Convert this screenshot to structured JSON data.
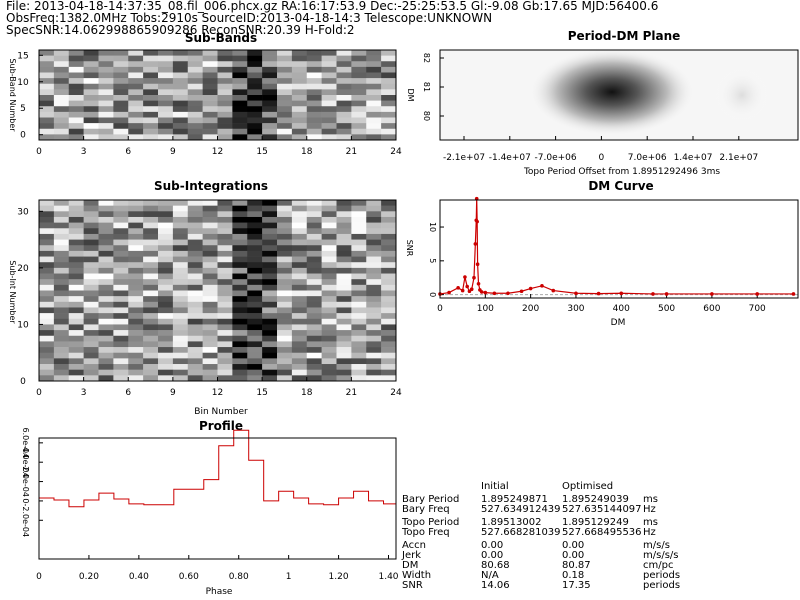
{
  "header": {
    "line1": "File: 2013-04-18-14:37:35_08.fil_006.phcx.gz   RA:16:17:53.9   Dec:-25:25:53.5   Gl:-9.08   Gb:17.65   MJD:56400.6",
    "line2": "ObsFreq:1382.0MHz   Tobs:2910s   SourceID:2013-04-18-14:3   Telescope:UNKNOWN",
    "line3": "SpecSNR:14.062998865909286   ReconSNR:20.39   H-Fold:2"
  },
  "subbands": {
    "title": "Sub-Bands",
    "ylabel": "Sub-Band Number",
    "xticks": [
      "0",
      "3",
      "6",
      "9",
      "12",
      "15",
      "18",
      "21",
      "24"
    ],
    "yticks": [
      "0",
      "5",
      "10",
      "15"
    ]
  },
  "subints": {
    "title": "Sub-Integrations",
    "xlabel": "Bin Number",
    "ylabel": "Sub-Int Number",
    "xticks": [
      "0",
      "3",
      "6",
      "9",
      "12",
      "15",
      "18",
      "21",
      "24"
    ],
    "yticks": [
      "0",
      "10",
      "20",
      "30"
    ]
  },
  "pdm": {
    "title": "Period-DM Plane",
    "xlabel": "Topo Period Offset from 1.8951292496 3ms",
    "ylabel": "DM",
    "xticks": [
      "-2.1e+07",
      "-1.4e+07",
      "-7.0e+06",
      "0",
      "7.0e+06",
      "1.4e+07",
      "2.1e+07"
    ],
    "yticks": [
      "82",
      "81",
      "80"
    ]
  },
  "table": {
    "col_initial": "Initial",
    "col_optimised": "Optimised",
    "rows": [
      {
        "label": "Bary Period",
        "initial": "1.895249871",
        "optimised": "1.895249039",
        "unit": "ms"
      },
      {
        "label": "Bary Freq",
        "initial": "527.634912439",
        "optimised": "527.635144097",
        "unit": "Hz"
      },
      {
        "label": "Topo Period",
        "initial": "1.89513002",
        "optimised": "1.895129249",
        "unit": "ms"
      },
      {
        "label": "Topo Freq",
        "initial": "527.668281039",
        "optimised": "527.668495536",
        "unit": "Hz"
      },
      {
        "label": "Accn",
        "initial": "0.00",
        "optimised": "0.00",
        "unit": "m/s/s"
      },
      {
        "label": "Jerk",
        "initial": "0.00",
        "optimised": "0.00",
        "unit": "m/s/s/s"
      },
      {
        "label": "DM",
        "initial": "80.68",
        "optimised": "80.87",
        "unit": "cm/pc"
      },
      {
        "label": "Width",
        "initial": "N/A",
        "optimised": "0.18",
        "unit": "periods"
      },
      {
        "label": "SNR",
        "initial": "14.06",
        "optimised": "17.35",
        "unit": "periods"
      }
    ]
  },
  "colors": {
    "curve": "#cc0000",
    "axis": "#000000",
    "grid_dark": "#000000"
  },
  "chart_data": [
    {
      "type": "line",
      "title": "DM Curve",
      "xlabel": "DM",
      "ylabel": "SNR",
      "xlim": [
        0,
        790
      ],
      "ylim": [
        -0.5,
        14
      ],
      "xticks": [
        0,
        100,
        200,
        300,
        400,
        500,
        600,
        700
      ],
      "yticks": [
        0,
        5,
        10
      ],
      "series": [
        {
          "x": [
            0,
            20,
            40,
            50,
            55,
            60,
            65,
            70,
            75,
            78,
            80,
            81,
            82,
            83,
            85,
            88,
            92,
            100,
            120,
            150,
            180,
            200,
            225,
            250,
            300,
            350,
            400,
            470,
            500,
            600,
            700,
            780
          ],
          "y": [
            0.1,
            0.3,
            1.0,
            0.6,
            2.6,
            1.2,
            0.5,
            0.8,
            2.5,
            7.5,
            11.0,
            14.2,
            10.8,
            4.5,
            1.6,
            0.7,
            0.4,
            0.3,
            0.2,
            0.2,
            0.5,
            0.9,
            1.3,
            0.6,
            0.2,
            0.15,
            0.2,
            0.1,
            0.1,
            0.1,
            0.1,
            0.1
          ]
        }
      ]
    },
    {
      "type": "line",
      "title": "Profile",
      "xlabel": "Phase",
      "ylabel": "",
      "xlim": [
        0,
        1.43
      ],
      "ylim": [
        -0.0006,
        0.00065
      ],
      "xticks": [
        "0",
        "0.20",
        "0.40",
        "0.60",
        "0.80",
        "1",
        "1.20",
        "1.40"
      ],
      "yticks": [
        "6.0e-04",
        "4.0e-04",
        "2.0e-04",
        "0",
        "-2.0e-04"
      ],
      "ytick_values": [
        0.0006,
        0.0004,
        0.0002,
        0,
        -0.0002
      ],
      "series": [
        {
          "step": true,
          "x": [
            0,
            0.06,
            0.12,
            0.18,
            0.24,
            0.3,
            0.36,
            0.42,
            0.48,
            0.54,
            0.6,
            0.66,
            0.72,
            0.78,
            0.84,
            0.9,
            0.96,
            1.02,
            1.08,
            1.14,
            1.2,
            1.26,
            1.32,
            1.38,
            1.43
          ],
          "y": [
            3e-05,
            1e-05,
            -6e-05,
            1e-05,
            8e-05,
            2e-05,
            -3e-05,
            -4e-05,
            -4e-05,
            0.00012,
            0.00012,
            0.00022,
            0.00057,
            0.00073,
            0.00042,
            0.0,
            0.0001,
            3e-05,
            -3e-05,
            -4e-05,
            3e-05,
            0.0001,
            0.0,
            -3e-05,
            -3e-05
          ]
        }
      ]
    }
  ]
}
